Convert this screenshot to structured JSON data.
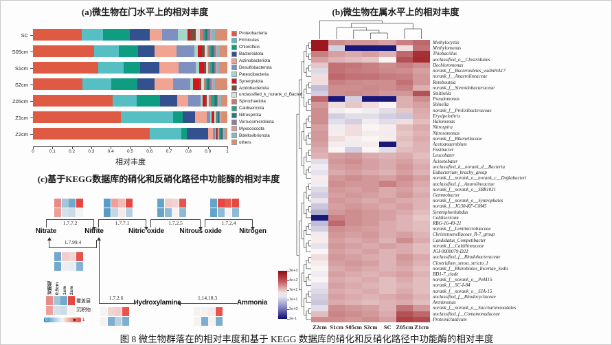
{
  "figure": {
    "caption": "图 8  微生物群落在的相对丰度和基于 KEGG 数据库的硝化和反硝化路径中功能酶的相对丰度"
  },
  "panel_a": {
    "title": "(a)微生物在门水平上的相对丰度",
    "xlabel": "相对丰度",
    "x_ticks": [
      "0",
      "0.1",
      "0.2",
      "0.3",
      "0.4",
      "0.5",
      "0.6",
      "0.7",
      "0.8",
      "0.9",
      "1"
    ]
  },
  "panel_b": {
    "title": "(b)微生物在属水平上的相对丰度",
    "colorbar_ticks": [
      "3e+3",
      "4e+2",
      "7e+1",
      "1e+1",
      "2e+0",
      "2e-1"
    ]
  },
  "panel_c": {
    "title": "(c)基于KEGG数据库的硝化和反硝化路径中功能酶的相对丰度",
    "heat_columns": [
      "对照组",
      "0.5cm",
      "1cm",
      "2cm"
    ],
    "heat_rows": [
      "覆盖层",
      "沉积物"
    ],
    "scale_min": "0",
    "scale_max": "1"
  },
  "chart_data": [
    {
      "panel": "a",
      "type": "bar",
      "subtype": "horizontal_stacked",
      "title": "(a)微生物在门水平上的相对丰度",
      "xlabel": "相对丰度",
      "xlim": [
        0,
        1
      ],
      "categories": [
        "SC",
        "S05cm",
        "S1cm",
        "S2cm",
        "Z05cm",
        "Z1cm",
        "Z2cm"
      ],
      "series": [
        {
          "name": "Proteobacteria",
          "color": "#DE5A42",
          "values": [
            0.25,
            0.315,
            0.335,
            0.256,
            0.41,
            0.452,
            0.6
          ]
        },
        {
          "name": "Firmicutes",
          "color": "#55BFC4",
          "values": [
            0.11,
            0.125,
            0.13,
            0.148,
            0.122,
            0.268,
            0.165
          ]
        },
        {
          "name": "Chloroflexi",
          "color": "#0E9D80",
          "values": [
            0.14,
            0.1,
            0.088,
            0.134,
            0.122,
            0.05,
            0.025
          ]
        },
        {
          "name": "Bacteroidota",
          "color": "#33518E",
          "values": [
            0.1,
            0.085,
            0.098,
            0.088,
            0.088,
            0.065,
            0.112
          ]
        },
        {
          "name": "Actinobacteriota",
          "color": "#F0A491",
          "values": [
            0.065,
            0.115,
            0.1,
            0.094,
            0.058,
            0.058,
            0.024
          ]
        },
        {
          "name": "Desulfobacterota",
          "color": "#7E90BF",
          "values": [
            0.08,
            0.09,
            0.088,
            0.088,
            0.062,
            0.02,
            0.01
          ]
        },
        {
          "name": "Patescibacteria",
          "color": "#A3D6C9",
          "values": [
            0.05,
            0.018,
            0.015,
            0.015,
            0.01,
            0.005,
            0.004
          ]
        },
        {
          "name": "Synergistota",
          "color": "#D2161B",
          "values": [
            0.015,
            0.022,
            0.025,
            0.032,
            0.014,
            0.01,
            0.005
          ]
        },
        {
          "name": "Acidobacteriota",
          "color": "#7C4C3B",
          "values": [
            0.028,
            0.012,
            0.01,
            0.01,
            0.008,
            0.005,
            0.004
          ]
        },
        {
          "name": "unclassified_k_norank_d_Bacteri",
          "color": "#DCDCDC",
          "values": [
            0.022,
            0.015,
            0.014,
            0.015,
            0.01,
            0.006,
            0.005
          ]
        },
        {
          "name": "Spirochaetota",
          "color": "#C87B6F",
          "values": [
            0.015,
            0.012,
            0.01,
            0.01,
            0.01,
            0.006,
            0.005
          ]
        },
        {
          "name": "Caldisericota",
          "color": "#2BA08D",
          "values": [
            0.012,
            0.01,
            0.009,
            0.009,
            0.02,
            0.005,
            0.005
          ]
        },
        {
          "name": "Nitrospirota",
          "color": "#287876",
          "values": [
            0.012,
            0.012,
            0.011,
            0.011,
            0.012,
            0.008,
            0.01
          ]
        },
        {
          "name": "Verrucomicrobiota",
          "color": "#8C7CA2",
          "values": [
            0.012,
            0.01,
            0.009,
            0.009,
            0.006,
            0.005,
            0.004
          ]
        },
        {
          "name": "Myxococcota",
          "color": "#D09DA4",
          "values": [
            0.012,
            0.008,
            0.006,
            0.006,
            0.006,
            0.005,
            0.004
          ]
        },
        {
          "name": "Bdellovibrionota",
          "color": "#7BBAC6",
          "values": [
            0.012,
            0.011,
            0.009,
            0.01,
            0.01,
            0.005,
            0.005
          ]
        },
        {
          "name": "others",
          "color": "#D98D71",
          "values": [
            0.065,
            0.04,
            0.043,
            0.065,
            0.032,
            0.027,
            0.013
          ]
        }
      ]
    },
    {
      "panel": "b",
      "type": "heatmap",
      "title": "(b)微生物在属水平上的相对丰度",
      "legend_position": "left-bottom",
      "colorbar_ticks": [
        "3e+3",
        "4e+2",
        "7e+1",
        "1e+1",
        "2e+0",
        "2e-1"
      ],
      "scale_note": "log-scale abundance, red=high, navy=low; values below are normalized 0-1 estimates",
      "columns": [
        "Z2cm",
        "S1cm",
        "S05cm",
        "S2cm",
        "SC",
        "Z05cm",
        "Z1cm"
      ],
      "rows": [
        "Methylocystis",
        "Methylomonas",
        "Thiobacillus",
        "unclassified_o__Clostridiales",
        "Dechloromonas",
        "norank_f__Bacteroidetes_vadinHA17",
        "norank_f__Anaerolineaceae",
        "Romboutsia",
        "norank_f__Steroidobacteraceae",
        "Smithella",
        "Pseudomonas",
        "Shinella",
        "norank_f__Prolixibacteraceae",
        "Erysipelothrix",
        "Halomonas",
        "Nitrospira",
        "Nitrosomonas",
        "norank_f__Rikenellaceae",
        "Acetoanaerobium",
        "Fusibacter",
        "Leucobater",
        "Acinetobater",
        "unclassified_k__norank_d__Bacteria",
        "Eubacterium_brachy_group",
        "norank_f__norank_o__norank_c__Dojkabacteri",
        "unclassified_f__Anarolineaceae",
        "norank_f__norank_o__SBR1031",
        "Gemmobacter",
        "norank_f__norank_o__Syntrophales",
        "norank_f__JG30-KF-CM45",
        "Syntrophorhabdus",
        "Caldisericum",
        "RBG-16-49-21",
        "norank_f__Lentimicrobiaceae",
        "Christensenellaceae_R-7_group",
        "Candidatus_Competibacter",
        "norank_f__Caldilineaceae",
        "JGI-0000079-D21",
        "unclassified_f__Rhodobacteraceae",
        "Clostridium_sensu_stricto_1",
        "norank_f__Rhizobiales_Incertae_Sedis",
        "BD1-7_clade",
        "norank_f__norank_o__PeM15",
        "norank_f__SC-I-84",
        "norank_f__norank_o__SJA-15",
        "unclassified_f__Rhodocyclaceae",
        "Arenimonas",
        "norank_f__norank_o__Saccharimonadales",
        "unclassified_f__Comamonadaceae",
        "Proteiniclasticum"
      ],
      "values_normalized": [
        [
          0.97,
          0.72,
          0.7,
          0.7,
          0.68,
          0.75,
          0.8
        ],
        [
          0.97,
          0.42,
          0.03,
          0.03,
          0.03,
          0.55,
          0.78
        ],
        [
          0.75,
          0.68,
          0.66,
          0.68,
          0.64,
          0.8,
          0.92
        ],
        [
          0.68,
          0.64,
          0.62,
          0.6,
          0.5,
          0.85,
          0.93
        ],
        [
          0.6,
          0.78,
          0.77,
          0.75,
          0.72,
          0.75,
          0.72
        ],
        [
          0.44,
          0.78,
          0.76,
          0.75,
          0.73,
          0.72,
          0.68
        ],
        [
          0.55,
          0.8,
          0.78,
          0.78,
          0.76,
          0.75,
          0.7
        ],
        [
          0.55,
          0.75,
          0.73,
          0.72,
          0.72,
          0.78,
          0.7
        ],
        [
          0.38,
          0.72,
          0.72,
          0.73,
          0.72,
          0.75,
          0.65
        ],
        [
          0.42,
          0.72,
          0.73,
          0.72,
          0.7,
          0.7,
          0.85
        ],
        [
          0.8,
          0.03,
          0.42,
          0.03,
          0.03,
          0.65,
          0.72
        ],
        [
          0.7,
          0.55,
          0.6,
          0.55,
          0.5,
          0.65,
          0.68
        ],
        [
          0.72,
          0.48,
          0.5,
          0.48,
          0.45,
          0.6,
          0.66
        ],
        [
          0.72,
          0.42,
          0.45,
          0.45,
          0.42,
          0.4,
          0.65
        ],
        [
          0.72,
          0.45,
          0.42,
          0.48,
          0.45,
          0.55,
          0.62
        ],
        [
          0.68,
          0.48,
          0.55,
          0.5,
          0.52,
          0.62,
          0.66
        ],
        [
          0.7,
          0.52,
          0.55,
          0.52,
          0.48,
          0.6,
          0.64
        ],
        [
          0.7,
          0.55,
          0.52,
          0.5,
          0.52,
          0.62,
          0.66
        ],
        [
          0.68,
          0.52,
          0.48,
          0.52,
          0.03,
          0.6,
          0.64
        ],
        [
          0.66,
          0.5,
          0.42,
          0.5,
          0.45,
          0.62,
          0.64
        ],
        [
          0.64,
          0.68,
          0.7,
          0.66,
          0.64,
          0.66,
          0.62
        ],
        [
          0.45,
          0.7,
          0.72,
          0.68,
          0.66,
          0.68,
          0.64
        ],
        [
          0.48,
          0.68,
          0.7,
          0.68,
          0.66,
          0.7,
          0.66
        ],
        [
          0.46,
          0.66,
          0.68,
          0.66,
          0.64,
          0.68,
          0.64
        ],
        [
          0.52,
          0.7,
          0.72,
          0.7,
          0.68,
          0.72,
          0.68
        ],
        [
          0.48,
          0.72,
          0.7,
          0.7,
          0.75,
          0.7,
          0.66
        ],
        [
          0.44,
          0.7,
          0.68,
          0.7,
          0.66,
          0.68,
          0.64
        ],
        [
          0.42,
          0.68,
          0.7,
          0.68,
          0.66,
          0.7,
          0.66
        ],
        [
          0.46,
          0.7,
          0.68,
          0.66,
          0.68,
          0.66,
          0.64
        ],
        [
          0.4,
          0.68,
          0.7,
          0.68,
          0.66,
          0.68,
          0.64
        ],
        [
          0.35,
          0.7,
          0.72,
          0.7,
          0.68,
          0.66,
          0.62
        ],
        [
          0.03,
          0.75,
          0.72,
          0.7,
          0.68,
          0.64,
          0.6
        ],
        [
          0.38,
          0.8,
          0.72,
          0.7,
          0.66,
          0.64,
          0.62
        ],
        [
          0.42,
          0.72,
          0.7,
          0.68,
          0.66,
          0.64,
          0.62
        ],
        [
          0.48,
          0.7,
          0.68,
          0.7,
          0.66,
          0.68,
          0.64
        ],
        [
          0.52,
          0.68,
          0.66,
          0.68,
          0.64,
          0.72,
          0.66
        ],
        [
          0.46,
          0.7,
          0.68,
          0.66,
          0.68,
          0.66,
          0.62
        ],
        [
          0.5,
          0.68,
          0.66,
          0.68,
          0.64,
          0.66,
          0.62
        ],
        [
          0.55,
          0.7,
          0.68,
          0.66,
          0.64,
          0.7,
          0.66
        ],
        [
          0.52,
          0.68,
          0.7,
          0.68,
          0.64,
          0.68,
          0.64
        ],
        [
          0.5,
          0.66,
          0.68,
          0.66,
          0.64,
          0.66,
          0.62
        ],
        [
          0.48,
          0.68,
          0.66,
          0.64,
          0.66,
          0.68,
          0.64
        ],
        [
          0.5,
          0.66,
          0.64,
          0.66,
          0.62,
          0.66,
          0.62
        ],
        [
          0.46,
          0.68,
          0.66,
          0.64,
          0.62,
          0.64,
          0.62
        ],
        [
          0.44,
          0.66,
          0.64,
          0.66,
          0.62,
          0.66,
          0.62
        ],
        [
          0.42,
          0.68,
          0.66,
          0.64,
          0.66,
          0.68,
          0.64
        ],
        [
          0.4,
          0.66,
          0.64,
          0.62,
          0.64,
          0.66,
          0.62
        ],
        [
          0.45,
          0.72,
          0.7,
          0.68,
          0.64,
          0.78,
          0.7
        ],
        [
          0.62,
          0.74,
          0.72,
          0.7,
          0.66,
          0.85,
          0.8
        ],
        [
          0.72,
          0.72,
          0.7,
          0.72,
          0.68,
          0.88,
          0.86
        ]
      ]
    },
    {
      "panel": "c",
      "type": "heatmap",
      "subtype": "pathway_mini_heatmaps",
      "title": "(c)基于KEGG数据库的硝化和反硝化路径中功能酶的相对丰度",
      "nodes": [
        "Nitrate",
        "Nitrite",
        "Nitric oxide",
        "Nitrous oxide",
        "Nitrogen",
        "Hydroxylamine",
        "Ammonia"
      ],
      "edges": [
        {
          "enzyme": "1.7.7.2",
          "from": "Nitrate",
          "to": "Nitrite"
        },
        {
          "enzyme": "1.7.7.1",
          "from": "Nitrite",
          "to": "Nitric oxide"
        },
        {
          "enzyme": "1.7.2.5",
          "from": "Nitric oxide",
          "to": "Nitrous oxide"
        },
        {
          "enzyme": "1.7.2.4",
          "from": "Nitrous oxide",
          "to": "Nitrogen"
        },
        {
          "enzyme": "1.7.99.4",
          "from": "Nitrite",
          "to": "Nitrate"
        },
        {
          "enzyme": "1.7.2.6",
          "from": "Hydroxylamine",
          "to": "Nitrite"
        },
        {
          "enzyme": "1.14.18.3",
          "from": "Ammonia",
          "to": "Hydroxylamine"
        }
      ],
      "heat_columns": [
        "对照组",
        "0.5cm",
        "1cm",
        "2cm"
      ],
      "heat_rows": [
        "覆盖层",
        "沉积物"
      ],
      "scale": {
        "min": 0,
        "max": 1,
        "low_color": "#2e86c1",
        "high_color": "#e74c3c"
      },
      "heatmaps": {
        "1.7.7.2": [
          [
            0.78,
            0.3,
            0.18,
            0.95
          ],
          [
            0.72,
            0.42,
            0.4,
            0.5
          ]
        ],
        "1.7.7.1": [
          [
            0.12,
            0.72,
            0.65,
            0.95
          ],
          [
            0.12,
            0.38,
            0.52,
            0.35
          ]
        ],
        "1.7.2.5": [
          [
            0.15,
            0.6,
            0.58,
            0.92
          ],
          [
            0.15,
            0.25,
            0.5,
            0.25
          ]
        ],
        "1.7.2.4": [
          [
            0.15,
            0.95,
            0.9,
            0.95
          ],
          [
            0.15,
            0.25,
            0.5,
            0.25
          ]
        ],
        "1.7.99.4": [
          [
            0.18,
            0.6,
            0.58,
            0.92
          ],
          [
            0.18,
            0.48,
            0.47,
            0.22
          ]
        ],
        "1.7.2.6": [
          [
            0.5,
            0.58,
            0.6,
            0.92
          ],
          [
            0.5,
            0.2,
            0.35,
            0.2
          ]
        ],
        "1.14.18.3": [
          [
            0.5,
            0.5,
            0.52,
            0.92
          ],
          [
            0.5,
            0.2,
            0.5,
            0.2
          ]
        ]
      },
      "legend_example": [
        [
          0.78,
          0.3,
          0.18,
          0.95
        ],
        [
          0.72,
          0.42,
          0.4,
          0.5
        ]
      ]
    }
  ]
}
